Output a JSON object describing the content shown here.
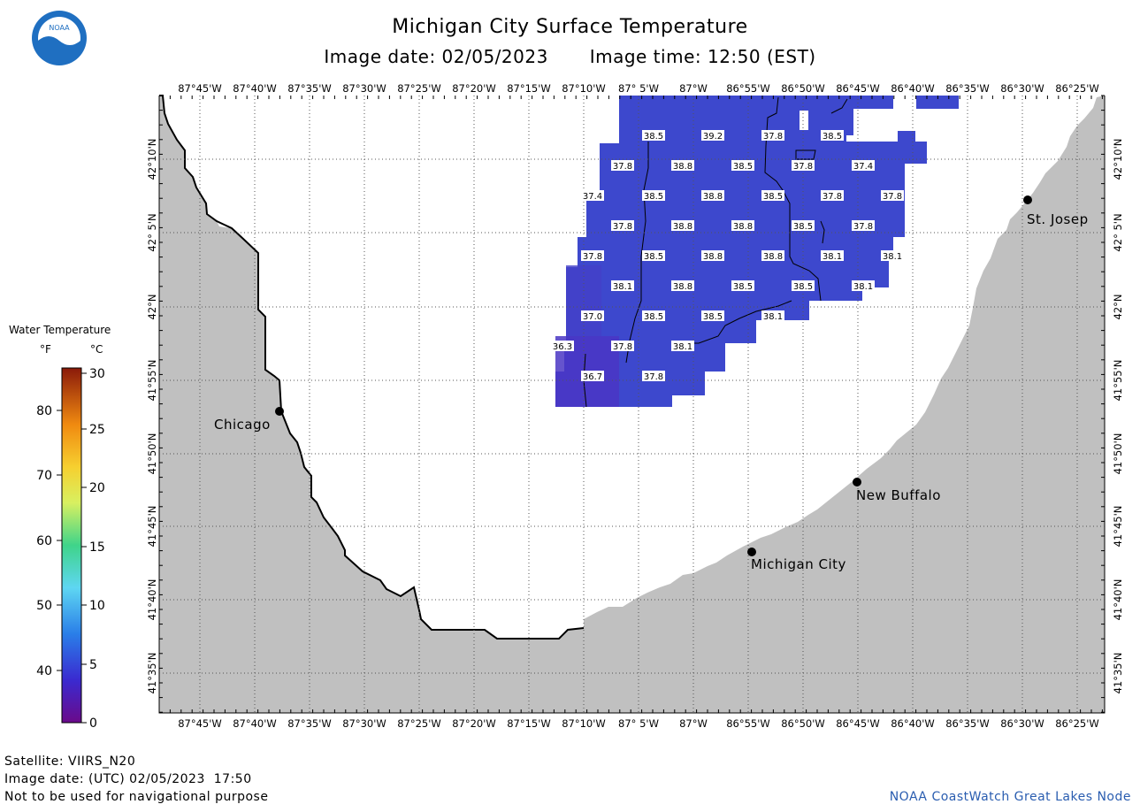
{
  "header": {
    "title": "Michigan City Surface Temperature",
    "image_date_label": "Image date: 02/05/2023",
    "image_time_label": "Image time: 12:50 (EST)"
  },
  "logo": {
    "text": "NOAA"
  },
  "longitude_labels": [
    "87°45'W",
    "87°40'W",
    "87°35'W",
    "87°30'W",
    "87°25'W",
    "87°20'W",
    "87°15'W",
    "87°10'W",
    "87° 5'W",
    "87°W",
    "86°55'W",
    "86°50'W",
    "86°45'W",
    "86°40'W",
    "86°35'W",
    "86°30'W",
    "86°25'W"
  ],
  "latitude_labels": [
    "42°10'N",
    "42° 5'N",
    "42°N",
    "41°55'N",
    "41°50'N",
    "41°45'N",
    "41°40'N",
    "41°35'N"
  ],
  "legend": {
    "title": "Water Temperature",
    "unit_f": "°F",
    "unit_c": "°C",
    "f_ticks": [
      "80",
      "70",
      "60",
      "50",
      "40"
    ],
    "c_ticks": [
      "30",
      "25",
      "20",
      "15",
      "10",
      "5",
      "0"
    ]
  },
  "cities": [
    {
      "name": "Chicago"
    },
    {
      "name": "St. Josep"
    },
    {
      "name": "New Buffalo"
    },
    {
      "name": "Michigan City"
    }
  ],
  "temperature_labels": [
    "38.5",
    "39.2",
    "37.8",
    "38.5",
    "37.8",
    "38.8",
    "38.5",
    "37.8",
    "37.4",
    "37.4",
    "38.5",
    "38.8",
    "38.5",
    "37.8",
    "37.8",
    "37.8",
    "38.8",
    "38.8",
    "38.5",
    "37.8",
    "37.8",
    "38.5",
    "38.8",
    "38.8",
    "38.1",
    "38.1",
    "38.1",
    "38.8",
    "38.5",
    "38.5",
    "38.1",
    "37.0",
    "38.5",
    "38.5",
    "38.1",
    "36.3",
    "37.8",
    "38.1",
    "36.7",
    "37.8"
  ],
  "footer": {
    "satellite": "Satellite: VIIRS_N20",
    "utc_date": "Image date: (UTC) 02/05/2023  17:50",
    "disclaimer": "Not to be used for navigational purpose",
    "credit": "NOAA CoastWatch Great Lakes Node"
  },
  "colors": {
    "land": "#c0c0c0",
    "water_data": "#3b48cc",
    "water_data_west": "#4a3cc8",
    "grid": "#555555"
  }
}
